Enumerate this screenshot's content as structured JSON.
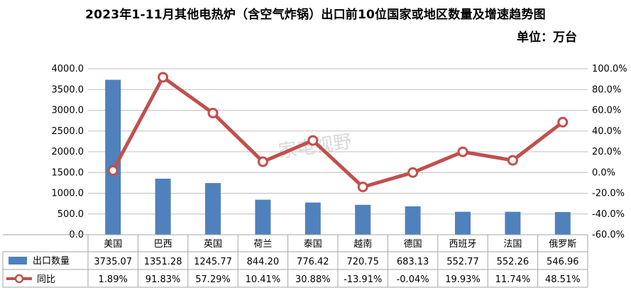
{
  "chart_data": {
    "type": "bar",
    "title": "2023年1-11月其他电热炉（含空气炸锅）出口前10位国家或地区数量及增速趋势图",
    "unit_label": "单位：万台",
    "watermark": "家电视野",
    "categories": [
      "美国",
      "巴西",
      "英国",
      "荷兰",
      "泰国",
      "越南",
      "德国",
      "西班牙",
      "法国",
      "俄罗斯"
    ],
    "series": [
      {
        "name": "出口数量",
        "type": "bar",
        "axis": "left",
        "color": "#4f81bd",
        "values": [
          3735.07,
          1351.28,
          1245.77,
          844.2,
          776.42,
          720.75,
          683.13,
          552.77,
          552.26,
          546.96
        ],
        "labels": [
          "3735.07",
          "1351.28",
          "1245.77",
          "844.20",
          "776.42",
          "720.75",
          "683.13",
          "552.77",
          "552.26",
          "546.96"
        ]
      },
      {
        "name": "同比",
        "type": "line",
        "axis": "right",
        "color": "#c0504d",
        "values": [
          1.89,
          91.83,
          57.29,
          10.41,
          30.88,
          -13.91,
          -0.04,
          19.93,
          11.74,
          48.51
        ],
        "labels": [
          "1.89%",
          "91.83%",
          "57.29%",
          "10.41%",
          "30.88%",
          "-13.91%",
          "-0.04%",
          "19.93%",
          "11.74%",
          "48.51%"
        ]
      }
    ],
    "ylim_left": [
      0,
      4000
    ],
    "yticks_left": [
      "4000.0",
      "3500.0",
      "3000.0",
      "2500.0",
      "2000.0",
      "1500.0",
      "1000.0",
      "500.0",
      "0.0"
    ],
    "ylim_right": [
      -60,
      100
    ],
    "yticks_right": [
      "100.0%",
      "80.0%",
      "60.0%",
      "40.0%",
      "20.0%",
      "0.0%",
      "-20.0%",
      "-40.0%",
      "-60.0%"
    ],
    "grid": true,
    "legend": "data-table"
  }
}
